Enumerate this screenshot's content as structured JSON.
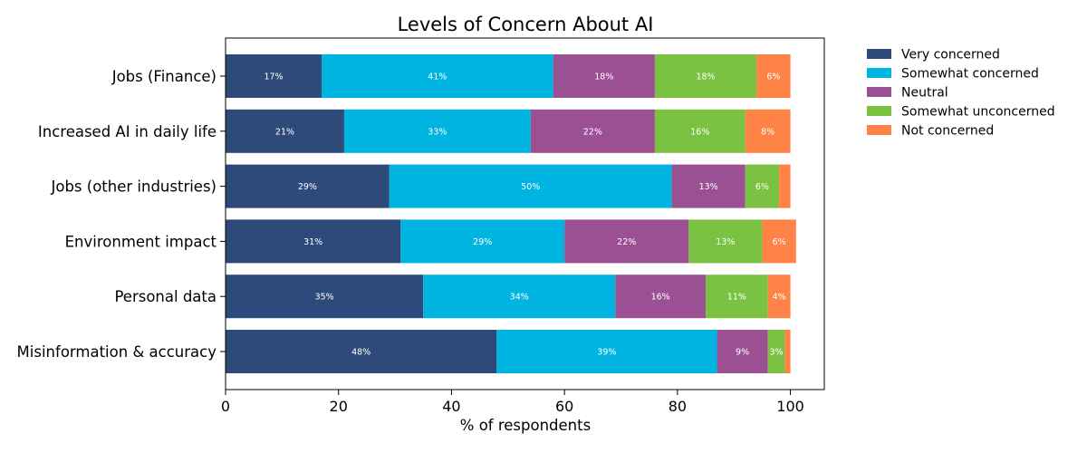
{
  "chart_data": {
    "type": "bar",
    "orientation": "horizontal",
    "stacked": true,
    "title": "Levels of Concern About AI",
    "xlabel": "% of respondents",
    "ylabel": "",
    "xlim": [
      0,
      106
    ],
    "xticks": [
      0,
      20,
      40,
      60,
      80,
      100
    ],
    "grid": false,
    "legend_position": "outside-top-right",
    "categories": [
      "Jobs (Finance)",
      "Increased AI in daily life",
      "Jobs (other industries)",
      "Environment impact",
      "Personal data",
      "Misinformation & accuracy"
    ],
    "series": [
      {
        "name": "Very concerned",
        "color": "#2e4a7a",
        "values": [
          17,
          21,
          29,
          31,
          35,
          48
        ],
        "labels": [
          "17%",
          "21%",
          "29%",
          "31%",
          "35%",
          "48%"
        ]
      },
      {
        "name": "Somewhat concerned",
        "color": "#00b4e1",
        "values": [
          41,
          33,
          50,
          29,
          34,
          39
        ],
        "labels": [
          "41%",
          "33%",
          "50%",
          "29%",
          "34%",
          "39%"
        ]
      },
      {
        "name": "Neutral",
        "color": "#9b5094",
        "values": [
          18,
          22,
          13,
          22,
          16,
          9
        ],
        "labels": [
          "18%",
          "22%",
          "13%",
          "22%",
          "16%",
          "9%"
        ]
      },
      {
        "name": "Somewhat unconcerned",
        "color": "#7cc242",
        "values": [
          18,
          16,
          6,
          13,
          11,
          3
        ],
        "labels": [
          "18%",
          "16%",
          "6%",
          "13%",
          "11%",
          "3%"
        ]
      },
      {
        "name": "Not concerned",
        "color": "#ff8246",
        "values": [
          6,
          8,
          2,
          6,
          4,
          1
        ],
        "labels": [
          "6%",
          "8%",
          "",
          "6%",
          "4%",
          ""
        ]
      }
    ]
  }
}
